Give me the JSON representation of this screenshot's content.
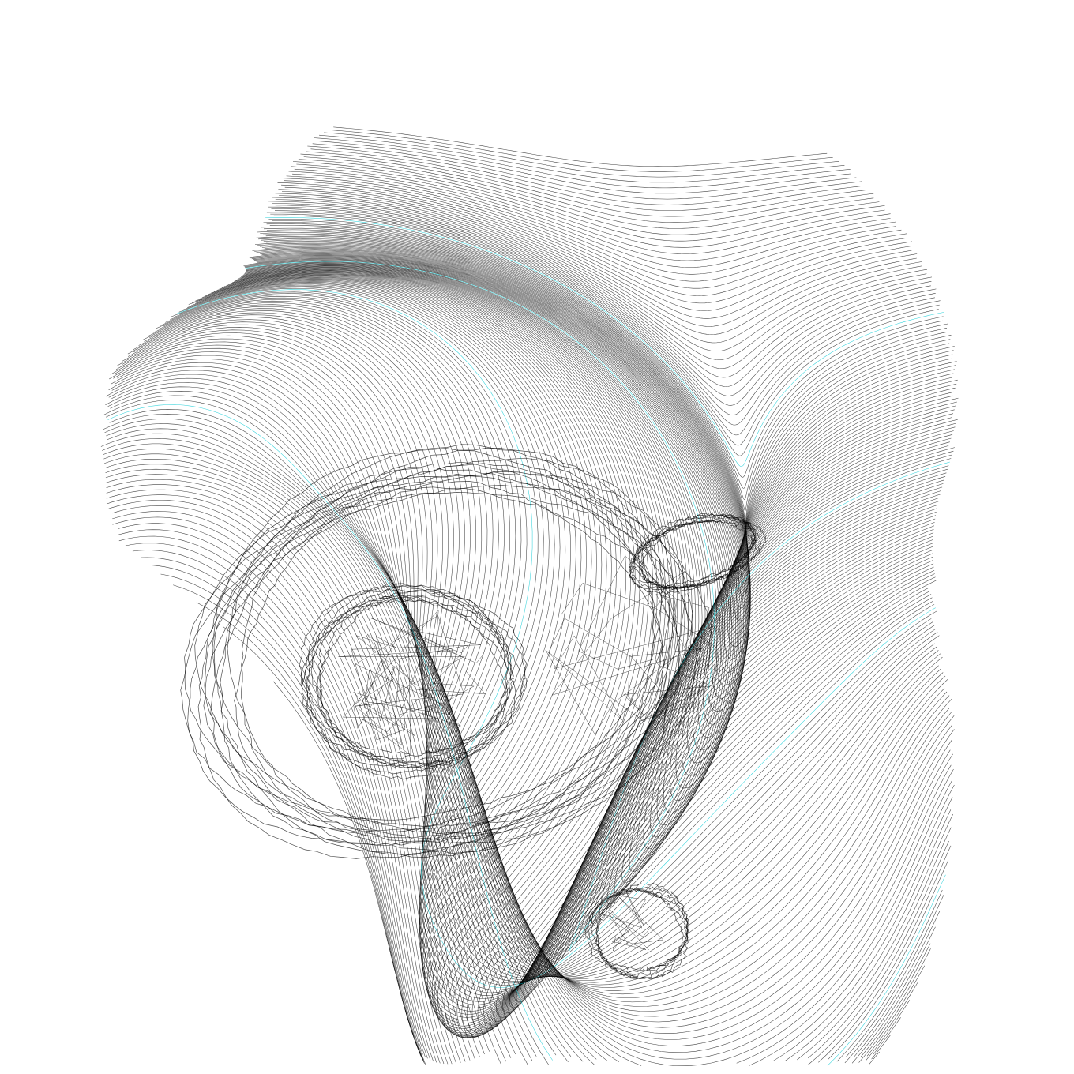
{
  "artwork": {
    "background": "#ffffff",
    "line_color": "#000000",
    "accent_line_color": "#00c8d2",
    "style": "generative contour plot, flow-field distorted horizontal lines inside a circle",
    "motifs": [
      "horizontal-hatch-cap",
      "spiral-vortex-large",
      "spiral-vortex-small",
      "scribble-core"
    ]
  }
}
